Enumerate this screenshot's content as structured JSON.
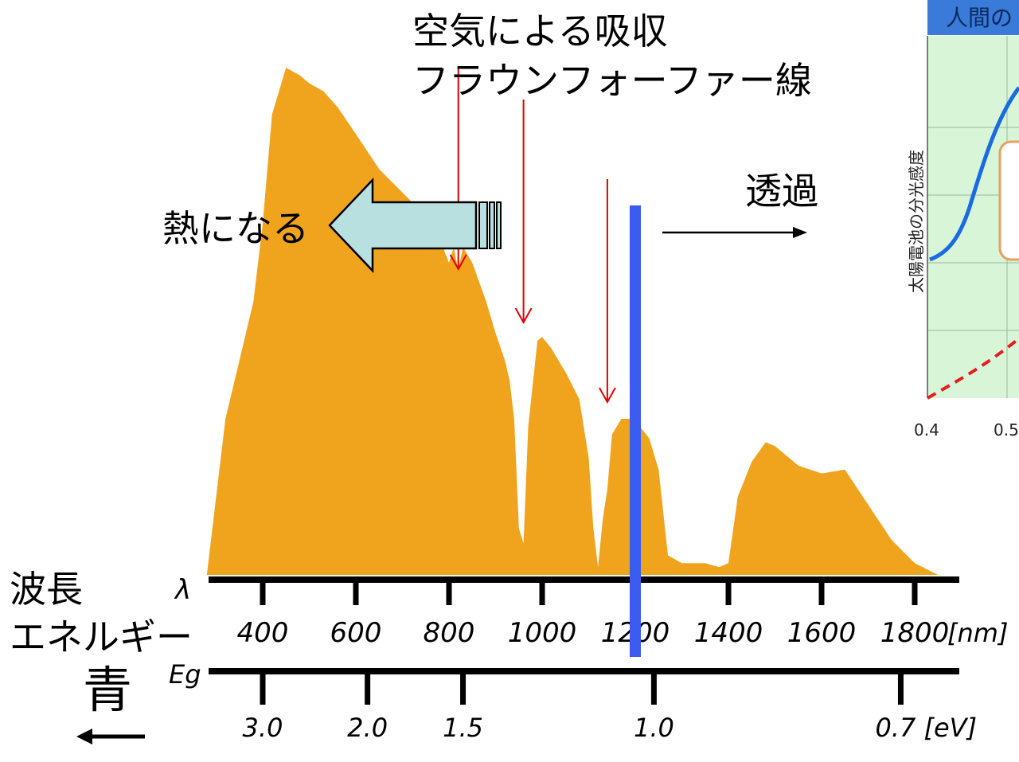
{
  "colors": {
    "spectrum": "#F0A41E",
    "bandgap_line": "#3a5cf0",
    "absorption_arrow": "#e00000",
    "heat_arrow": "#b8e0e0",
    "blue_text": "#1010e0",
    "inset_bg": "#d8f5d8",
    "inset_header": "#3a7ad8",
    "inset_curve": "#1a6ae0",
    "inset_dashed": "#e02020"
  },
  "annotations": {
    "air_absorption": "空気による吸収",
    "fraunhofer": "フラウンフォーファー線",
    "heat": "熱になる",
    "transmit": "透過",
    "wavelength": "波長",
    "energy": "エネルギー",
    "blue": "青"
  },
  "axes": {
    "lambda_symbol": "λ",
    "eg_symbol": "Eg",
    "nm_ticks": [
      "400",
      "600",
      "800",
      "1000",
      "1200",
      "1400",
      "1600",
      "1800"
    ],
    "nm_unit": "[nm]",
    "ev_ticks": [
      "3.0",
      "2.0",
      "1.5",
      "1.0",
      "0.7"
    ],
    "ev_unit": "[eV]"
  },
  "inset": {
    "header": "人間の",
    "ylabel": "太陽電池の分光感度",
    "x_ticks": [
      "0.4",
      "0.5"
    ]
  },
  "chart_data": {
    "type": "area",
    "title": "",
    "xlabel": "",
    "ylabel": "",
    "x_unit": "nm",
    "xlim": [
      270,
      1900
    ],
    "bandgap_wavelength_nm": 1200,
    "absorption_markers_nm": [
      820,
      960,
      1140
    ],
    "energy_ticks": [
      {
        "ev": 3.0,
        "nm": 400
      },
      {
        "ev": 2.0,
        "nm": 625
      },
      {
        "ev": 1.5,
        "nm": 830
      },
      {
        "ev": 1.0,
        "nm": 1240
      },
      {
        "ev": 0.7,
        "nm": 1770
      }
    ],
    "x": [
      280,
      300,
      320,
      350,
      380,
      400,
      420,
      450,
      480,
      500,
      530,
      560,
      600,
      650,
      700,
      750,
      780,
      800,
      810,
      820,
      830,
      850,
      880,
      900,
      920,
      930,
      940,
      950,
      960,
      970,
      990,
      1000,
      1020,
      1050,
      1080,
      1100,
      1110,
      1120,
      1130,
      1140,
      1150,
      1170,
      1190,
      1210,
      1230,
      1250,
      1270,
      1300,
      1320,
      1350,
      1380,
      1400,
      1420,
      1450,
      1480,
      1500,
      1550,
      1600,
      1650,
      1700,
      1750,
      1800,
      1850,
      1880
    ],
    "values": [
      0,
      20,
      40,
      55,
      70,
      90,
      118,
      130,
      128,
      126,
      124,
      120,
      113,
      104,
      98,
      92,
      86,
      80,
      84,
      78,
      84,
      80,
      70,
      62,
      55,
      50,
      40,
      12,
      8,
      38,
      60,
      61,
      58,
      52,
      45,
      30,
      12,
      2,
      14,
      22,
      36,
      40,
      40,
      38,
      35,
      27,
      5,
      3,
      3,
      3,
      2,
      3,
      20,
      29,
      34,
      33,
      28,
      26,
      27,
      18,
      9,
      3,
      0,
      0
    ]
  }
}
